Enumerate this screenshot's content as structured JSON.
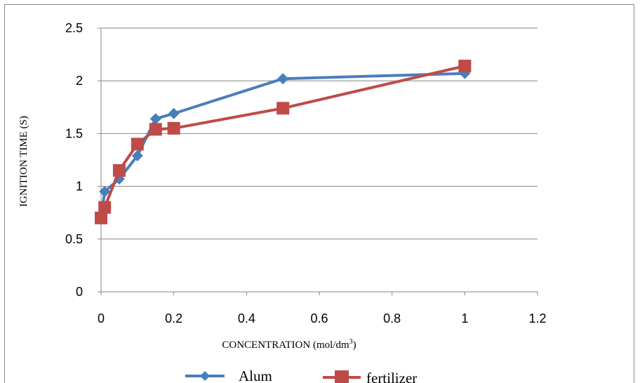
{
  "chart_data": {
    "type": "line",
    "title": "",
    "xlabel": "CONCENTRATION (mol/dm",
    "xlabel_sup": "3",
    "xlabel_end": ")",
    "ylabel": "IGNITION TIME (S)",
    "xlim": [
      0,
      1.2
    ],
    "ylim": [
      0,
      2.5
    ],
    "x_ticks": [
      "0",
      "0.2",
      "0.4",
      "0.6",
      "0.8",
      "1",
      "1.2"
    ],
    "y_ticks": [
      "0",
      "0.5",
      "1",
      "1.5",
      "2",
      "2.5"
    ],
    "grid": "horizontal",
    "legend_position": "bottom",
    "series": [
      {
        "name": "Alum",
        "color": "#4a7ebb",
        "marker": "diamond",
        "x": [
          0,
          0.01,
          0.05,
          0.1,
          0.15,
          0.2,
          0.5,
          1
        ],
        "y": [
          0.7,
          0.95,
          1.07,
          1.29,
          1.64,
          1.69,
          2.02,
          2.07
        ]
      },
      {
        "name": "fertilizer",
        "color": "#be4b48",
        "marker": "square",
        "x": [
          0,
          0.01,
          0.05,
          0.1,
          0.15,
          0.2,
          0.5,
          1
        ],
        "y": [
          0.7,
          0.8,
          1.15,
          1.4,
          1.54,
          1.55,
          1.74,
          2.14
        ]
      }
    ]
  }
}
